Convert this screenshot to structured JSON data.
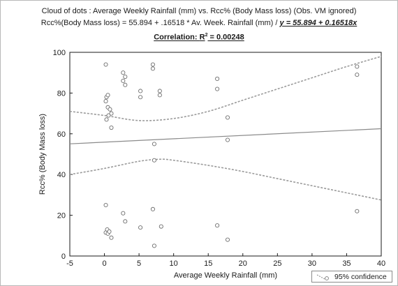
{
  "chart_data": {
    "type": "scatter",
    "title": "Cloud of dots : Average Weekly Rainfall (mm) vs. Rcc% (Body Mass loss) (Obs. VM ignored)",
    "subtitle_prefix": "Rcc%(Body Mass loss) = 55.894 + .16518 * Av. Week. Rainfall (mm) / ",
    "subtitle_equation": "y = 55.894 + 0.16518x",
    "correlation_prefix": "Correlation: ",
    "correlation_r": "R",
    "correlation_sup": "2",
    "correlation_value": " = 0.00248",
    "xlabel": "Average Weekly Rainfall (mm)",
    "ylabel": "Rcc% (Body Mass loss)",
    "xlim": [
      -5,
      40
    ],
    "ylim": [
      0,
      100
    ],
    "xticks": [
      -5,
      0,
      5,
      10,
      15,
      20,
      25,
      30,
      35,
      40
    ],
    "yticks": [
      0,
      20,
      40,
      60,
      80,
      100
    ],
    "grid": false,
    "regression": {
      "intercept": 55.894,
      "slope": 0.16518
    },
    "confidence_upper": [
      [
        -5,
        71
      ],
      [
        0,
        69
      ],
      [
        5,
        66.5
      ],
      [
        10,
        67.5
      ],
      [
        15,
        71
      ],
      [
        20,
        76.5
      ],
      [
        25,
        82
      ],
      [
        30,
        87.5
      ],
      [
        35,
        93
      ],
      [
        40,
        98
      ]
    ],
    "confidence_lower": [
      [
        -5,
        40
      ],
      [
        0,
        43
      ],
      [
        5,
        46.5
      ],
      [
        8,
        47.5
      ],
      [
        10,
        47
      ],
      [
        15,
        44.5
      ],
      [
        20,
        41.5
      ],
      [
        25,
        38
      ],
      [
        30,
        34.5
      ],
      [
        35,
        31
      ],
      [
        40,
        27.5
      ]
    ],
    "legend": {
      "label": "95% confidence",
      "placement": "bottom-right"
    },
    "points": [
      [
        0.2,
        94
      ],
      [
        0.3,
        78
      ],
      [
        0.5,
        79
      ],
      [
        0.2,
        76
      ],
      [
        0.5,
        73
      ],
      [
        0.8,
        72
      ],
      [
        0.6,
        69
      ],
      [
        0.3,
        67
      ],
      [
        1.0,
        70
      ],
      [
        1.0,
        63
      ],
      [
        2.7,
        90
      ],
      [
        3.0,
        88
      ],
      [
        2.7,
        86
      ],
      [
        3.0,
        84
      ],
      [
        5.2,
        81
      ],
      [
        5.2,
        78
      ],
      [
        7.0,
        94
      ],
      [
        7.0,
        92
      ],
      [
        8.0,
        81
      ],
      [
        8.0,
        79
      ],
      [
        16.3,
        87
      ],
      [
        16.3,
        82
      ],
      [
        17.8,
        68
      ],
      [
        17.8,
        57
      ],
      [
        36.5,
        93
      ],
      [
        36.5,
        89
      ],
      [
        7.2,
        55
      ],
      [
        7.2,
        47
      ],
      [
        0.2,
        25
      ],
      [
        2.7,
        21
      ],
      [
        3.0,
        17
      ],
      [
        7.0,
        23
      ],
      [
        0.2,
        11.5
      ],
      [
        0.4,
        13
      ],
      [
        0.5,
        11
      ],
      [
        0.7,
        12
      ],
      [
        1.0,
        9
      ],
      [
        5.2,
        14
      ],
      [
        7.2,
        5
      ],
      [
        8.2,
        14.5
      ],
      [
        16.3,
        15
      ],
      [
        17.8,
        8
      ],
      [
        36.5,
        22
      ]
    ]
  }
}
